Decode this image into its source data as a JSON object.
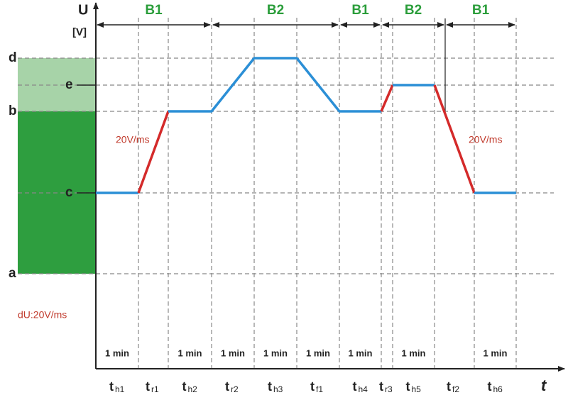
{
  "axis": {
    "y_label": "U",
    "y_unit": "[V]",
    "x_label": "t"
  },
  "levels": [
    {
      "label": "d"
    },
    {
      "label": "e"
    },
    {
      "label": "b"
    },
    {
      "label": "c"
    },
    {
      "label": "a"
    }
  ],
  "bands": [
    {
      "label": "B1"
    },
    {
      "label": "B2"
    },
    {
      "label": "B1"
    },
    {
      "label": "B2"
    },
    {
      "label": "B1"
    }
  ],
  "phases": [
    {
      "symbol": "t",
      "subscript": "h1",
      "duration": "1 min"
    },
    {
      "symbol": "t",
      "subscript": "r1"
    },
    {
      "symbol": "t",
      "subscript": "h2",
      "duration": "1 min"
    },
    {
      "symbol": "t",
      "subscript": "r2",
      "duration": "1 min"
    },
    {
      "symbol": "t",
      "subscript": "h3",
      "duration": "1 min"
    },
    {
      "symbol": "t",
      "subscript": "f1",
      "duration": "1 min"
    },
    {
      "symbol": "t",
      "subscript": "h4",
      "duration": "1 min"
    },
    {
      "symbol": "t",
      "subscript": "r3"
    },
    {
      "symbol": "t",
      "subscript": "h5",
      "duration": "1 min"
    },
    {
      "symbol": "t",
      "subscript": "f2"
    },
    {
      "symbol": "t",
      "subscript": "h6",
      "duration": "1 min"
    }
  ],
  "annotations": [
    "20V/ms",
    "20V/ms",
    "dU:20V/ms"
  ]
}
